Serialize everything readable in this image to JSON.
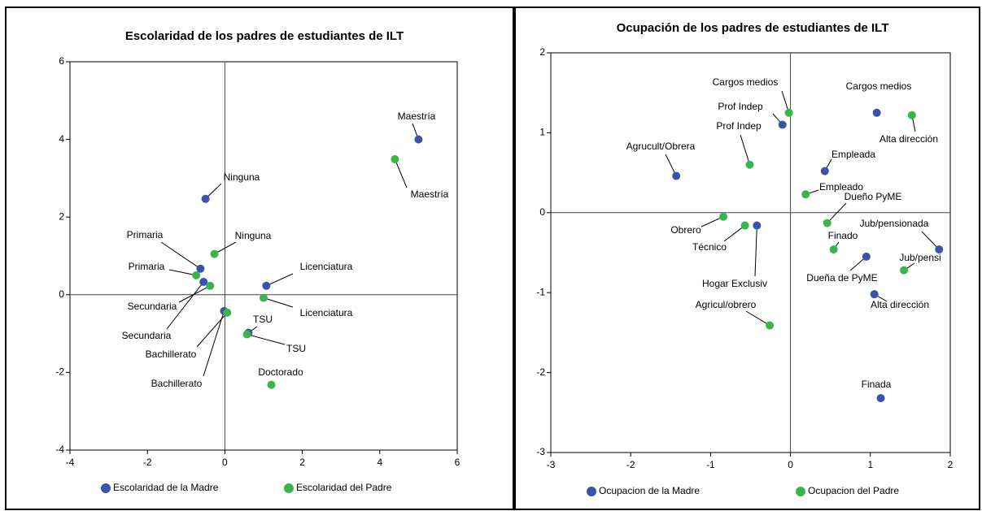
{
  "chart_data": [
    {
      "type": "scatter",
      "title": "Escolaridad de los padres de estudiantes de ILT",
      "xlim": [
        -4,
        6
      ],
      "ylim": [
        -4,
        6
      ],
      "xticks": [
        -4,
        -2,
        0,
        2,
        4,
        6
      ],
      "yticks": [
        -4,
        -2,
        0,
        2,
        4,
        6
      ],
      "series": [
        {
          "name": "Escolaridad de la Madre",
          "color": "#3953a8",
          "x": [
            5.0,
            -0.5,
            -0.63,
            -0.55,
            1.07,
            -0.02,
            0.61
          ],
          "values": [
            4.0,
            2.47,
            0.67,
            0.33,
            0.23,
            -0.42,
            -0.98
          ],
          "labels": [
            "Maestría",
            "Ninguna",
            "Primaria",
            "Secundaria",
            "Licenciatura",
            "Bachillerato",
            "TSU"
          ]
        },
        {
          "name": "Escolaridad del Padre",
          "color": "#39b54a",
          "x": [
            4.39,
            -0.27,
            -0.74,
            -0.38,
            1.0,
            0.06,
            0.57,
            1.2
          ],
          "values": [
            3.49,
            1.05,
            0.5,
            0.23,
            -0.08,
            -0.46,
            -1.02,
            -2.32
          ],
          "labels": [
            "Maestría",
            "Ninguna",
            "Primaria",
            "Secundaria",
            "Licenciatura",
            "Bachillerato",
            "TSU",
            "Doctorado"
          ]
        }
      ]
    },
    {
      "type": "scatter",
      "title": "Ocupación de los padres de estudiantes de ILT",
      "xlim": [
        -3,
        2
      ],
      "ylim": [
        -3,
        2
      ],
      "xticks": [
        -3,
        -2,
        -1,
        0,
        1,
        2
      ],
      "yticks": [
        -3,
        -2,
        -1,
        0,
        1,
        2
      ],
      "series": [
        {
          "name": "Ocupacion de la Madre",
          "color": "#3953a8",
          "x": [
            1.08,
            -0.1,
            -1.43,
            0.43,
            -0.42,
            1.86,
            0.95,
            1.05,
            1.13
          ],
          "values": [
            1.25,
            1.1,
            0.46,
            0.52,
            -0.16,
            -0.46,
            -0.55,
            -1.02,
            -2.32
          ],
          "labels": [
            "Cargos medios",
            "Prof Indep",
            "Agrucult/Obrera",
            "Empleada",
            "Hogar Exclusiv",
            "Jub/pensionada",
            "Dueña de PyME",
            "Alta dirección",
            "Finada"
          ]
        },
        {
          "name": "Ocupacion del Padre",
          "color": "#39b54a",
          "x": [
            -0.02,
            1.52,
            -0.51,
            0.19,
            0.46,
            -0.84,
            -0.57,
            0.54,
            1.42,
            -0.26
          ],
          "values": [
            1.25,
            1.22,
            0.6,
            0.23,
            -0.13,
            -0.05,
            -0.16,
            -0.46,
            -0.72,
            -1.41
          ],
          "labels": [
            "Cargos medios",
            "Alta dirección",
            "Prof Indep",
            "Empleado",
            "Dueño PyME",
            "Obrero",
            "Técnico",
            "Finado",
            "Jub/pensi",
            "Agricul/obrero"
          ]
        }
      ]
    }
  ]
}
